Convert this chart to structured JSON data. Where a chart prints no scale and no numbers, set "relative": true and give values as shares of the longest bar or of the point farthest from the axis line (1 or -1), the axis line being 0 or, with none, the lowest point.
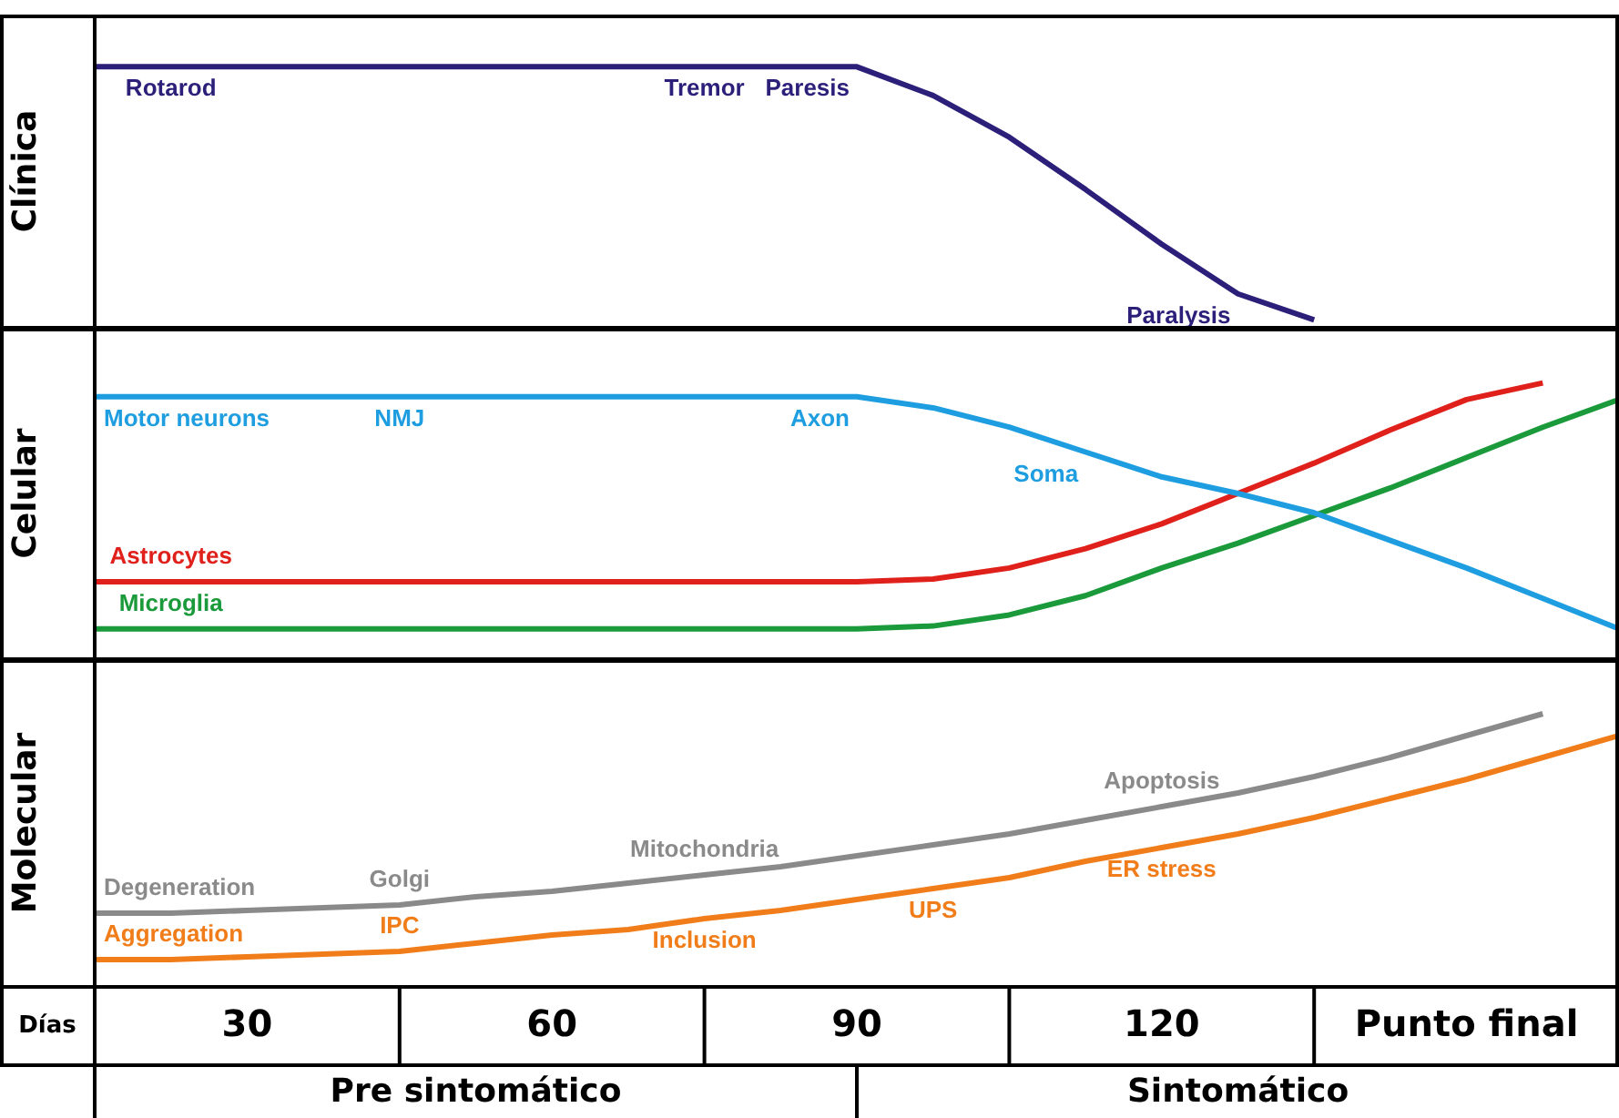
{
  "chart_data": [
    {
      "type": "line",
      "ylabel": "Clínica",
      "relative": true,
      "tick_labels": false,
      "grid": false,
      "legend": false,
      "xlim": [
        15,
        165
      ],
      "x": [
        15,
        22.5,
        30,
        37.5,
        45,
        52.5,
        60,
        67.5,
        75,
        82.5,
        90,
        97.5,
        105,
        112.5,
        120,
        127.5,
        135
      ],
      "series": [
        {
          "color": "#2b1f7a",
          "values": [
            1,
            1,
            1,
            1,
            1,
            1,
            1,
            1,
            1,
            1,
            1,
            0.89,
            0.73,
            0.53,
            0.32,
            0.13,
            0.03
          ]
        }
      ],
      "annotations": [
        {
          "text": "Rotarod",
          "x": 22.5,
          "y": 1
        },
        {
          "text": "Tremor",
          "x": 75,
          "y": 1
        },
        {
          "text": "Paresis",
          "x": 90,
          "y": 1
        },
        {
          "text": "Paralysis",
          "x": 127.5,
          "y": 0.13
        }
      ]
    },
    {
      "type": "line",
      "ylabel": "Celular",
      "relative": true,
      "tick_labels": false,
      "grid": false,
      "legend": false,
      "xlim": [
        15,
        165
      ],
      "x": [
        15,
        22.5,
        30,
        37.5,
        45,
        52.5,
        60,
        67.5,
        75,
        82.5,
        90,
        97.5,
        105,
        112.5,
        120,
        127.5,
        135,
        142.5,
        150,
        157.5,
        165
      ],
      "series": [
        {
          "color": "#1e9ee0",
          "values": [
            0.95,
            0.95,
            0.95,
            0.95,
            0.95,
            0.95,
            0.95,
            0.95,
            0.95,
            0.95,
            0.95,
            0.91,
            0.84,
            0.75,
            0.66,
            0.6,
            0.53,
            0.43,
            0.33,
            0.22,
            0.11
          ]
        },
        {
          "color": "#e0201b",
          "values": [
            0.28,
            0.28,
            0.28,
            0.28,
            0.28,
            0.28,
            0.28,
            0.28,
            0.28,
            0.28,
            0.28,
            0.29,
            0.33,
            0.4,
            0.49,
            0.6,
            0.71,
            0.83,
            0.94,
            1.0,
            null
          ]
        },
        {
          "color": "#1a9a3a",
          "values": [
            0.11,
            0.11,
            0.11,
            0.11,
            0.11,
            0.11,
            0.11,
            0.11,
            0.11,
            0.11,
            0.11,
            0.12,
            0.16,
            0.23,
            0.33,
            0.42,
            0.52,
            0.62,
            0.73,
            0.84,
            0.94
          ]
        }
      ],
      "annotations": [
        {
          "text": "Motor neurons",
          "x": 22.5,
          "y": 0.95
        },
        {
          "text": "NMJ",
          "x": 45,
          "y": 0.95
        },
        {
          "text": "Axon",
          "x": 90,
          "y": 0.95
        },
        {
          "text": "Soma",
          "x": 112.5,
          "y": 0.75
        },
        {
          "text": "Astrocytes",
          "x": 22.5,
          "y": 0.28
        },
        {
          "text": "Microglia",
          "x": 22.5,
          "y": 0.11
        }
      ]
    },
    {
      "type": "line",
      "ylabel": "Molecular",
      "xlabel": "Días",
      "relative": true,
      "tick_labels": "x",
      "grid": false,
      "legend": false,
      "xlim": [
        15,
        165
      ],
      "xticks": [
        30,
        60,
        90,
        120,
        {
          "value": 150,
          "label": "Punto final"
        }
      ],
      "x": [
        15,
        22.5,
        30,
        37.5,
        45,
        52.5,
        60,
        67.5,
        75,
        82.5,
        90,
        97.5,
        105,
        112.5,
        120,
        127.5,
        135,
        142.5,
        150,
        157.5,
        165
      ],
      "series": [
        {
          "color": "#8a8a8a",
          "values": [
            0.27,
            0.27,
            0.28,
            0.29,
            0.3,
            0.33,
            0.35,
            0.38,
            0.41,
            0.44,
            0.48,
            0.52,
            0.56,
            0.61,
            0.66,
            0.71,
            0.77,
            0.84,
            0.92,
            1.0,
            null
          ]
        },
        {
          "color": "#f07d1a",
          "values": [
            0.1,
            0.1,
            0.11,
            0.12,
            0.13,
            0.16,
            0.19,
            0.21,
            0.25,
            0.28,
            0.32,
            0.36,
            0.4,
            0.46,
            0.51,
            0.56,
            0.62,
            0.69,
            0.76,
            0.84,
            0.92
          ]
        }
      ],
      "annotations": [
        {
          "text": "Degeneration",
          "x": 22.5,
          "y": 0.27
        },
        {
          "text": "Golgi",
          "x": 45,
          "y": 0.3
        },
        {
          "text": "Mitochondria",
          "x": 75,
          "y": 0.41
        },
        {
          "text": "Apoptosis",
          "x": 120,
          "y": 0.66
        },
        {
          "text": "Aggregation",
          "x": 22.5,
          "y": 0.1
        },
        {
          "text": "IPC",
          "x": 45,
          "y": 0.13
        },
        {
          "text": "Inclusion",
          "x": 75,
          "y": 0.25
        },
        {
          "text": "UPS",
          "x": 97.5,
          "y": 0.36
        },
        {
          "text": "ER stress",
          "x": 120,
          "y": 0.51
        },
        "Pre sintomático",
        "Sintomático"
      ]
    }
  ]
}
